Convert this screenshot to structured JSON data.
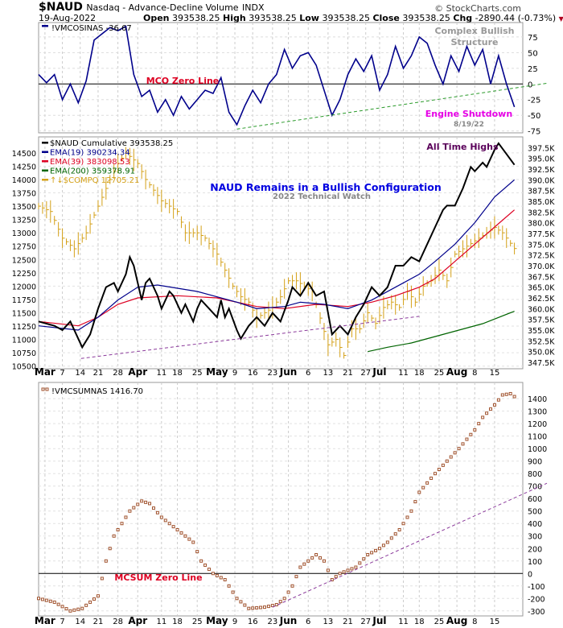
{
  "header": {
    "symbol": "$NAUD",
    "description": "Nasdaq - Advance-Decline Volume",
    "exchange": "INDX",
    "brand": "© StockCharts.com",
    "date": "19-Aug-2022",
    "open_label": "Open",
    "open": "393538.25",
    "high_label": "High",
    "high": "393538.25",
    "low_label": "Low",
    "low": "393538.25",
    "close_label": "Close",
    "close": "393538.25",
    "chg_label": "Chg",
    "chg": "-2890.44 (-0.73%)",
    "down_arrow": "▼"
  },
  "colors": {
    "navy": "#00008b",
    "red": "#dd0022",
    "green": "#006400",
    "gold": "#d4a017",
    "purple": "#8a2be2",
    "brown": "#a0522d",
    "black": "#000000"
  },
  "chart_data": [
    {
      "type": "line",
      "panel": "top",
      "legend": "!VMCOSINAS -36.67",
      "x_step_sessions": 2,
      "series": [
        {
          "name": "!VMCOSINAS",
          "values": [
            15,
            2,
            15,
            -25,
            0,
            -30,
            5,
            70,
            80,
            90,
            85,
            92,
            15,
            -20,
            -10,
            -45,
            -25,
            -50,
            -20,
            -40,
            -25,
            -10,
            -15,
            10,
            -45,
            -65,
            -35,
            -10,
            -30,
            0,
            15,
            55,
            25,
            45,
            50,
            30,
            -10,
            -50,
            -25,
            15,
            40,
            20,
            45,
            -10,
            15,
            60,
            25,
            45,
            75,
            65,
            30,
            0,
            45,
            20,
            60,
            30,
            55,
            0,
            45,
            0,
            -36.67
          ]
        }
      ],
      "yticks": [
        75,
        50,
        25,
        0,
        -25,
        -50,
        -75
      ],
      "ylim": [
        -78,
        98
      ],
      "trendline": {
        "from": [
          50,
          -72
        ],
        "to": [
          127,
          0
        ]
      },
      "annotations": {
        "structure_1": "Complex Bullish",
        "structure_2": "Structure",
        "zero_line": "MCO Zero Line",
        "shutdown": "Engine Shutdown",
        "shutdown_date": "8/19/22"
      }
    },
    {
      "type": "line",
      "panel": "middle",
      "legend": [
        {
          "label": "$NAUD Cumulative 393538.25",
          "color": "#000000"
        },
        {
          "label": "EMA(19) 390234.34",
          "color": "#00008b"
        },
        {
          "label": "EMA(39) 383098.53",
          "color": "#dd0022"
        },
        {
          "label": "EMA(200) 359378.91",
          "color": "#006400"
        },
        {
          "label": "↑↓$COMPQ 12705.21",
          "color": "#d4a017"
        }
      ],
      "right_axis_ticks": [
        "397.5K",
        "395.0K",
        "392.5K",
        "390.0K",
        "387.5K",
        "385.0K",
        "382.5K",
        "380.0K",
        "377.5K",
        "375.0K",
        "372.5K",
        "370.0K",
        "367.5K",
        "365.0K",
        "362.5K",
        "360.0K",
        "357.5K",
        "355.0K",
        "352.5K",
        "350.0K",
        "347.5K"
      ],
      "right_ylim_k": [
        346,
        400
      ],
      "left_axis_ticks": [
        14500,
        14250,
        14000,
        13750,
        13500,
        13250,
        13000,
        12750,
        12500,
        12250,
        12000,
        11750,
        11500,
        11250,
        11000,
        10750,
        10500
      ],
      "left_ylim": [
        10450,
        14800
      ],
      "naud_k": [
        [
          0,
          357
        ],
        [
          4,
          356
        ],
        [
          6,
          355
        ],
        [
          8,
          357
        ],
        [
          11,
          351
        ],
        [
          13,
          354
        ],
        [
          15,
          360
        ],
        [
          17,
          365
        ],
        [
          19,
          366
        ],
        [
          20,
          364
        ],
        [
          22,
          368
        ],
        [
          23,
          372
        ],
        [
          24,
          370
        ],
        [
          26,
          362
        ],
        [
          27,
          366
        ],
        [
          28,
          367
        ],
        [
          30,
          363
        ],
        [
          31,
          360
        ],
        [
          33,
          364
        ],
        [
          34,
          363
        ],
        [
          36,
          359
        ],
        [
          37,
          361
        ],
        [
          39,
          357
        ],
        [
          40,
          360
        ],
        [
          41,
          362
        ],
        [
          43,
          360
        ],
        [
          45,
          358
        ],
        [
          46,
          362
        ],
        [
          47,
          358
        ],
        [
          48,
          360
        ],
        [
          50,
          355
        ],
        [
          51,
          353
        ],
        [
          53,
          356
        ],
        [
          55,
          358
        ],
        [
          57,
          356
        ],
        [
          59,
          359
        ],
        [
          61,
          357
        ],
        [
          63,
          362
        ],
        [
          64,
          365
        ],
        [
          66,
          363
        ],
        [
          68,
          366
        ],
        [
          70,
          363
        ],
        [
          72,
          364
        ],
        [
          74,
          354
        ],
        [
          76,
          356
        ],
        [
          78,
          354
        ],
        [
          80,
          358
        ],
        [
          82,
          361
        ],
        [
          84,
          365
        ],
        [
          86,
          363
        ],
        [
          88,
          365
        ],
        [
          90,
          370
        ],
        [
          92,
          370
        ],
        [
          94,
          372
        ],
        [
          96,
          371
        ],
        [
          98,
          375
        ],
        [
          100,
          379
        ],
        [
          102,
          383
        ],
        [
          103,
          384
        ],
        [
          105,
          384
        ],
        [
          107,
          388
        ],
        [
          109,
          393
        ],
        [
          110,
          392
        ],
        [
          112,
          394
        ],
        [
          113,
          393
        ],
        [
          115,
          397
        ],
        [
          116,
          398.5
        ],
        [
          118,
          396
        ],
        [
          120,
          393.5
        ]
      ],
      "ema19_k": [
        [
          0,
          356
        ],
        [
          10,
          355
        ],
        [
          15,
          358
        ],
        [
          20,
          362
        ],
        [
          25,
          365
        ],
        [
          30,
          365.5
        ],
        [
          40,
          364
        ],
        [
          50,
          361.5
        ],
        [
          55,
          360
        ],
        [
          62,
          360.5
        ],
        [
          66,
          361.5
        ],
        [
          72,
          361
        ],
        [
          78,
          360
        ],
        [
          84,
          362
        ],
        [
          90,
          365
        ],
        [
          96,
          368
        ],
        [
          100,
          371
        ],
        [
          105,
          375
        ],
        [
          110,
          380
        ],
        [
          115,
          386
        ],
        [
          120,
          390
        ]
      ],
      "ema39_k": [
        [
          0,
          357
        ],
        [
          10,
          356
        ],
        [
          15,
          358
        ],
        [
          20,
          361
        ],
        [
          25,
          362.5
        ],
        [
          35,
          363
        ],
        [
          45,
          362.5
        ],
        [
          55,
          360.5
        ],
        [
          62,
          360
        ],
        [
          70,
          361
        ],
        [
          78,
          360.5
        ],
        [
          84,
          361.5
        ],
        [
          90,
          363
        ],
        [
          96,
          365
        ],
        [
          100,
          367
        ],
        [
          105,
          371
        ],
        [
          110,
          375
        ],
        [
          115,
          379
        ],
        [
          120,
          383
        ]
      ],
      "ema200_k": [
        [
          83,
          350
        ],
        [
          88,
          351
        ],
        [
          94,
          352
        ],
        [
          100,
          353.5
        ],
        [
          106,
          355
        ],
        [
          112,
          356.5
        ],
        [
          120,
          359.4
        ]
      ],
      "compq": [
        [
          0,
          13500
        ],
        [
          3,
          13400
        ],
        [
          6,
          12900
        ],
        [
          9,
          12700
        ],
        [
          12,
          13000
        ],
        [
          15,
          13500
        ],
        [
          18,
          14000
        ],
        [
          20,
          14300
        ],
        [
          22,
          14500
        ],
        [
          25,
          14300
        ],
        [
          27,
          14000
        ],
        [
          29,
          13800
        ],
        [
          31,
          13600
        ],
        [
          33,
          13500
        ],
        [
          35,
          13400
        ],
        [
          37,
          13000
        ],
        [
          40,
          13000
        ],
        [
          42,
          12900
        ],
        [
          45,
          12600
        ],
        [
          47,
          12300
        ],
        [
          49,
          12000
        ],
        [
          51,
          11800
        ],
        [
          53,
          11700
        ],
        [
          55,
          11400
        ],
        [
          57,
          11500
        ],
        [
          59,
          11600
        ],
        [
          61,
          11800
        ],
        [
          63,
          12100
        ],
        [
          65,
          12100
        ],
        [
          67,
          12000
        ],
        [
          69,
          11900
        ],
        [
          71,
          11400
        ],
        [
          73,
          10900
        ],
        [
          75,
          11000
        ],
        [
          77,
          10700
        ],
        [
          79,
          11200
        ],
        [
          81,
          11200
        ],
        [
          83,
          11500
        ],
        [
          85,
          11300
        ],
        [
          87,
          11600
        ],
        [
          89,
          11700
        ],
        [
          91,
          11600
        ],
        [
          93,
          11900
        ],
        [
          95,
          11700
        ],
        [
          97,
          12000
        ],
        [
          99,
          12100
        ],
        [
          101,
          12300
        ],
        [
          103,
          12100
        ],
        [
          105,
          12600
        ],
        [
          107,
          12700
        ],
        [
          109,
          12800
        ],
        [
          111,
          12900
        ],
        [
          113,
          13000
        ],
        [
          115,
          13100
        ],
        [
          117,
          13000
        ],
        [
          120,
          12705.21
        ]
      ],
      "trendline_k": {
        "from": [
          10.7,
          348.4
        ],
        "to": [
          96,
          358.2
        ]
      },
      "annotations": {
        "title": "NAUD Remains in a Bullish Configuration",
        "subtitle": "2022 Technical Watch",
        "ath": "All Time Highs"
      }
    },
    {
      "type": "scatter",
      "panel": "bottom",
      "legend": "!VMCSUMNAS 1416.70",
      "points": [
        [
          0,
          -200
        ],
        [
          4,
          -230
        ],
        [
          8,
          -300
        ],
        [
          11,
          -280
        ],
        [
          15,
          -180
        ],
        [
          17,
          100
        ],
        [
          19,
          300
        ],
        [
          23,
          500
        ],
        [
          26,
          580
        ],
        [
          28,
          560
        ],
        [
          31,
          450
        ],
        [
          35,
          350
        ],
        [
          39,
          250
        ],
        [
          41,
          100
        ],
        [
          44,
          0
        ],
        [
          47,
          -50
        ],
        [
          50,
          -200
        ],
        [
          53,
          -280
        ],
        [
          57,
          -270
        ],
        [
          60,
          -250
        ],
        [
          62,
          -200
        ],
        [
          64,
          -100
        ],
        [
          66,
          50
        ],
        [
          70,
          150
        ],
        [
          72,
          100
        ],
        [
          74,
          -50
        ],
        [
          76,
          0
        ],
        [
          80,
          50
        ],
        [
          83,
          150
        ],
        [
          86,
          200
        ],
        [
          88,
          250
        ],
        [
          91,
          350
        ],
        [
          94,
          500
        ],
        [
          96,
          650
        ],
        [
          100,
          800
        ],
        [
          103,
          900
        ],
        [
          106,
          1000
        ],
        [
          110,
          1150
        ],
        [
          112,
          1250
        ],
        [
          115,
          1350
        ],
        [
          117,
          1430
        ],
        [
          119,
          1440
        ],
        [
          120,
          1416.7
        ]
      ],
      "yticks": [
        1400,
        1300,
        1200,
        1100,
        1000,
        900,
        800,
        700,
        600,
        500,
        400,
        300,
        200,
        100,
        0,
        -100,
        -200,
        -300
      ],
      "ylim": [
        -340,
        1530
      ],
      "trendline": {
        "from": [
          59,
          -270
        ],
        "to": [
          128,
          720
        ]
      },
      "annotations": {
        "zero_line": "MCSUM Zero Line"
      }
    }
  ],
  "x_axis": {
    "labels": [
      {
        "t": "Mar",
        "s": 1.6,
        "bold": true
      },
      {
        "t": "7",
        "s": 6
      },
      {
        "t": "14",
        "s": 10.5
      },
      {
        "t": "21",
        "s": 15
      },
      {
        "t": "28",
        "s": 20
      },
      {
        "t": "Apr",
        "s": 25,
        "bold": true
      },
      {
        "t": "11",
        "s": 31
      },
      {
        "t": "18",
        "s": 35
      },
      {
        "t": "25",
        "s": 40
      },
      {
        "t": "May",
        "s": 45,
        "bold": true
      },
      {
        "t": "9",
        "s": 49.5
      },
      {
        "t": "16",
        "s": 54
      },
      {
        "t": "23",
        "s": 59
      },
      {
        "t": "Jun",
        "s": 63,
        "bold": true
      },
      {
        "t": "6",
        "s": 68
      },
      {
        "t": "13",
        "s": 73
      },
      {
        "t": "21",
        "s": 78
      },
      {
        "t": "27",
        "s": 82.5
      },
      {
        "t": "Jul",
        "s": 86,
        "bold": true
      },
      {
        "t": "11",
        "s": 92
      },
      {
        "t": "18",
        "s": 96
      },
      {
        "t": "25",
        "s": 101
      },
      {
        "t": "Aug",
        "s": 105.5,
        "bold": true
      },
      {
        "t": "8",
        "s": 110
      },
      {
        "t": "15",
        "s": 115
      }
    ]
  }
}
